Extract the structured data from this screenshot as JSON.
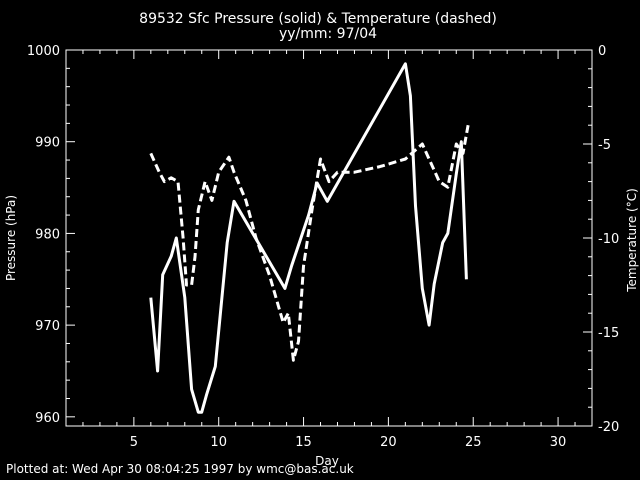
{
  "title": "89532 Sfc Pressure (solid) & Temperature (dashed)",
  "subtitle": "yy/mm: 97/04",
  "footer": "Plotted at: Wed Apr 30 08:04:25 1997 by wmc@bas.ac.uk",
  "colors": {
    "background": "#000000",
    "foreground": "#ffffff"
  },
  "chart_data": {
    "type": "line",
    "title": "89532 Sfc Pressure (solid) & Temperature (dashed)",
    "subtitle": "yy/mm: 97/04",
    "xlabel": "Day",
    "ylabel_left": "Pressure (hPa)",
    "ylabel_right": "Temperature (°C)",
    "xlim": [
      1,
      32
    ],
    "ylim_left": [
      959,
      1000
    ],
    "ylim_right": [
      -20,
      0
    ],
    "xticks": [
      5,
      10,
      15,
      20,
      25,
      30
    ],
    "yticks_left": [
      960,
      970,
      980,
      990,
      1000
    ],
    "yticks_right": [
      -20,
      -15,
      -10,
      -5,
      0
    ],
    "grid": false,
    "series": [
      {
        "name": "Sfc Pressure",
        "axis": "left",
        "style": "solid",
        "x": [
          6.0,
          6.4,
          6.7,
          7.2,
          7.5,
          8.0,
          8.4,
          8.8,
          9.0,
          9.3,
          9.8,
          10.5,
          10.9,
          13.9,
          14.3,
          15.3,
          15.8,
          16.4,
          21.0,
          21.3,
          21.6,
          22.0,
          22.4,
          22.7,
          23.2,
          23.5,
          24.0,
          24.3,
          24.6
        ],
        "y": [
          973.0,
          965.0,
          975.5,
          977.5,
          979.5,
          973.0,
          963.0,
          960.5,
          960.5,
          962.5,
          965.5,
          979.0,
          983.5,
          974.0,
          976.5,
          982.0,
          985.5,
          983.5,
          998.5,
          995.0,
          983.0,
          974.0,
          970.0,
          974.5,
          979.0,
          980.0,
          986.5,
          990.0,
          975.0
        ]
      },
      {
        "name": "Temperature",
        "axis": "right",
        "style": "dashed",
        "x": [
          6.0,
          6.5,
          6.8,
          7.2,
          7.6,
          7.9,
          8.1,
          8.4,
          8.6,
          8.8,
          9.2,
          9.6,
          10.0,
          10.6,
          10.9,
          11.6,
          12.2,
          13.0,
          13.8,
          14.1,
          14.4,
          14.7,
          15.0,
          15.5,
          16.0,
          16.5,
          17.0,
          18.0,
          19.5,
          21.0,
          22.0,
          22.5,
          23.0,
          23.5,
          24.0,
          24.4,
          24.7
        ],
        "y": [
          -5.5,
          -6.5,
          -7.0,
          -6.8,
          -7.0,
          -10.0,
          -12.5,
          -12.5,
          -11.0,
          -8.5,
          -7.0,
          -8.0,
          -6.5,
          -5.7,
          -6.5,
          -8.0,
          -10.0,
          -12.0,
          -14.5,
          -14.0,
          -16.5,
          -15.5,
          -11.5,
          -8.5,
          -5.8,
          -7.0,
          -6.5,
          -6.5,
          -6.2,
          -5.8,
          -5.0,
          -6.0,
          -7.0,
          -7.3,
          -5.0,
          -5.5,
          -4.0
        ]
      }
    ]
  }
}
